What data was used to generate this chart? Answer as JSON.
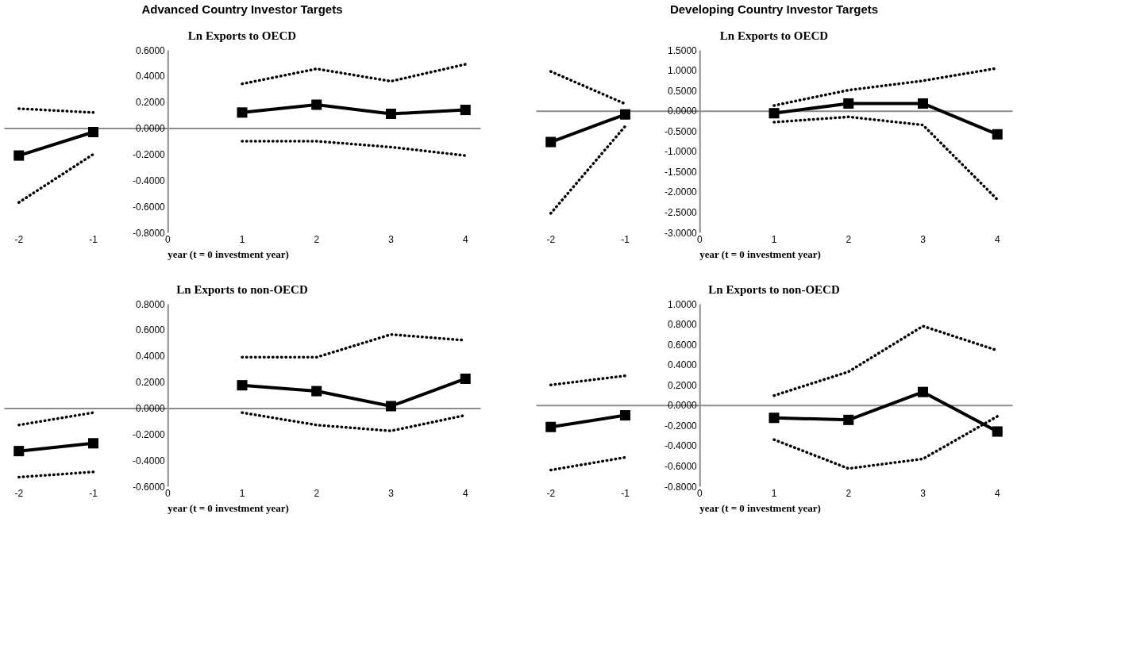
{
  "chart_data": [
    {
      "type": "line",
      "title": "Advanced Country Investor Targets",
      "subtitle": "Ln Exports to OECD",
      "xlabel": "year (t = 0 investment year)",
      "categories": [
        "-2",
        "-1",
        "0",
        "1",
        "2",
        "3",
        "4"
      ],
      "ylim": [
        -0.8,
        0.6
      ],
      "yticks": [
        {
          "value": -0.8,
          "label": "-0.8000"
        },
        {
          "value": -0.6,
          "label": "-0.6000"
        },
        {
          "value": -0.4,
          "label": "-0.4000"
        },
        {
          "value": -0.2,
          "label": "-0.2000"
        },
        {
          "value": 0,
          "label": "0.0000"
        },
        {
          "value": 0.2,
          "label": "0.2000"
        },
        {
          "value": 0.4,
          "label": "0.4000"
        },
        {
          "value": 0.6,
          "label": "0.6000"
        }
      ],
      "series": [
        {
          "color": "#000000",
          "marker": "square",
          "line_style": "solid",
          "values": [
            -0.21,
            -0.03,
            null,
            0.12,
            0.18,
            0.11,
            0.14
          ]
        },
        {
          "color": "#000000",
          "marker": "none",
          "line_style": "dotted",
          "values": [
            0.15,
            0.12,
            null,
            0.34,
            0.455,
            0.36,
            0.49
          ]
        },
        {
          "color": "#000000",
          "marker": "none",
          "line_style": "dotted",
          "values": [
            -0.57,
            -0.2,
            null,
            -0.1,
            -0.1,
            -0.145,
            -0.21
          ]
        }
      ]
    },
    {
      "type": "line",
      "title": "Developing Country Investor Targets",
      "subtitle": "Ln Exports to OECD",
      "xlabel": "year (t = 0 investment year)",
      "categories": [
        "-2",
        "-1",
        "0",
        "1",
        "2",
        "3",
        "4"
      ],
      "ylim": [
        -3,
        1.5
      ],
      "yticks": [
        {
          "value": -3,
          "label": "-3.0000"
        },
        {
          "value": -2.5,
          "label": "-2.5000"
        },
        {
          "value": -2,
          "label": "-2.0000"
        },
        {
          "value": -1.5,
          "label": "-1.5000"
        },
        {
          "value": -1,
          "label": "-1.0000"
        },
        {
          "value": -0.5,
          "label": "-0.5000"
        },
        {
          "value": 0,
          "label": "0.0000"
        },
        {
          "value": 0.5,
          "label": "0.5000"
        },
        {
          "value": 1,
          "label": "1.0000"
        },
        {
          "value": 1.5,
          "label": "1.5000"
        }
      ],
      "series": [
        {
          "color": "#000000",
          "marker": "square",
          "line_style": "solid",
          "values": [
            -0.77,
            -0.09,
            null,
            -0.06,
            0.18,
            0.18,
            -0.58
          ]
        },
        {
          "color": "#000000",
          "marker": "none",
          "line_style": "dotted",
          "values": [
            0.97,
            0.17,
            null,
            0.13,
            0.51,
            0.74,
            1.05
          ]
        },
        {
          "color": "#000000",
          "marker": "none",
          "line_style": "dotted",
          "values": [
            -2.53,
            -0.38,
            null,
            -0.28,
            -0.15,
            -0.35,
            -2.19
          ]
        }
      ]
    },
    {
      "type": "line",
      "title": "Ln Exports to non-OECD",
      "xlabel": "year (t = 0 investment year)",
      "categories": [
        "-2",
        "-1",
        "0",
        "1",
        "2",
        "3",
        "4"
      ],
      "ylim": [
        -0.6,
        0.8
      ],
      "yticks": [
        {
          "value": -0.6,
          "label": "-0.6000"
        },
        {
          "value": -0.4,
          "label": "-0.4000"
        },
        {
          "value": -0.2,
          "label": "-0.2000"
        },
        {
          "value": 0,
          "label": "0.0000"
        },
        {
          "value": 0.2,
          "label": "0.2000"
        },
        {
          "value": 0.4,
          "label": "0.4000"
        },
        {
          "value": 0.6,
          "label": "0.6000"
        },
        {
          "value": 0.8,
          "label": "0.8000"
        }
      ],
      "series": [
        {
          "color": "#000000",
          "marker": "square",
          "line_style": "solid",
          "values": [
            -0.33,
            -0.27,
            null,
            0.175,
            0.13,
            0.015,
            0.225
          ]
        },
        {
          "color": "#000000",
          "marker": "none",
          "line_style": "dotted",
          "values": [
            -0.13,
            -0.035,
            null,
            0.39,
            0.39,
            0.565,
            0.52
          ]
        },
        {
          "color": "#000000",
          "marker": "none",
          "line_style": "dotted",
          "values": [
            -0.53,
            -0.49,
            null,
            -0.035,
            -0.13,
            -0.175,
            -0.055
          ]
        }
      ]
    },
    {
      "type": "line",
      "title": "Ln Exports to non-OECD",
      "xlabel": "year (t = 0 investment year)",
      "categories": [
        "-2",
        "-1",
        "0",
        "1",
        "2",
        "3",
        "4"
      ],
      "ylim": [
        -0.8,
        1.0
      ],
      "yticks": [
        {
          "value": -0.8,
          "label": "-0.8000"
        },
        {
          "value": -0.6,
          "label": "-0.6000"
        },
        {
          "value": -0.4,
          "label": "-0.4000"
        },
        {
          "value": -0.2,
          "label": "-0.2000"
        },
        {
          "value": 0,
          "label": "0.0000"
        },
        {
          "value": 0.2,
          "label": "0.2000"
        },
        {
          "value": 0.4,
          "label": "0.4000"
        },
        {
          "value": 0.6,
          "label": "0.6000"
        },
        {
          "value": 0.8,
          "label": "0.8000"
        },
        {
          "value": 1.0,
          "label": "1.0000"
        }
      ],
      "series": [
        {
          "color": "#000000",
          "marker": "square",
          "line_style": "solid",
          "values": [
            -0.215,
            -0.1,
            null,
            -0.125,
            -0.145,
            0.13,
            -0.26
          ]
        },
        {
          "color": "#000000",
          "marker": "none",
          "line_style": "dotted",
          "values": [
            0.2,
            0.29,
            null,
            0.095,
            0.33,
            0.78,
            0.54
          ]
        },
        {
          "color": "#000000",
          "marker": "none",
          "line_style": "dotted",
          "values": [
            -0.64,
            -0.515,
            null,
            -0.34,
            -0.625,
            -0.53,
            -0.11
          ]
        }
      ]
    }
  ]
}
